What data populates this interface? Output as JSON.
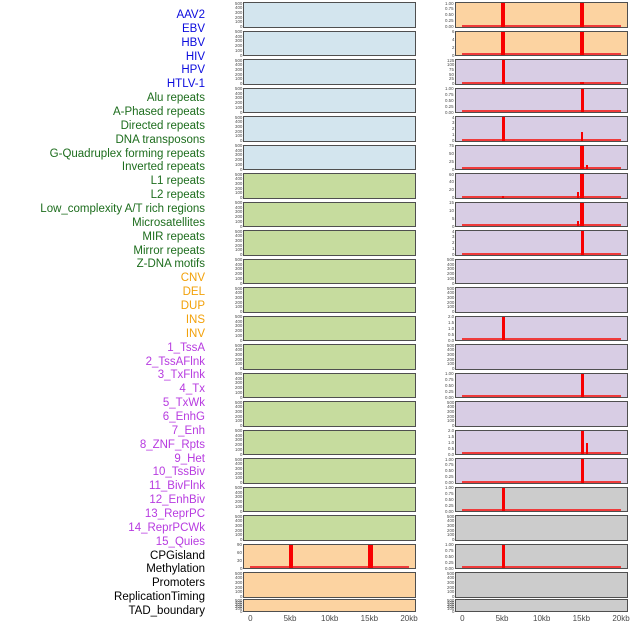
{
  "colors": {
    "label": {
      "virus": "#0b0bdd",
      "repeat": "#1d6d1d",
      "sv": "#f2a10a",
      "chromatin": "#b73be0",
      "annotation": "#000000"
    },
    "panel_fill": {
      "virus": "#d3e5ee",
      "repeat": "#c6dc9e",
      "sv": "#fcd3a1",
      "chromatin": "#d8cde4",
      "annotation": "#cccccc"
    },
    "panel_border": "#4f4f4f",
    "signal": "#f80000",
    "signal_baseline": "#ef3b3b",
    "axis_text": "#4a4a4a"
  },
  "chart_data": {
    "type": "area",
    "title": "",
    "xlabel": "",
    "ylabel": "",
    "x_range_kb": [
      0,
      20
    ],
    "xticks": [
      "0",
      "5kb",
      "10kb",
      "15kb",
      "20kb"
    ],
    "legend": "none",
    "grid": false,
    "layout": "two columns of 22 stacked signal panels, 44 row labels at left",
    "rows": [
      {
        "label": "AAV2",
        "group": "virus",
        "column": 1,
        "ylim": [
          0,
          500
        ],
        "yticks": [
          "500",
          "400",
          "300",
          "200",
          "100",
          "0"
        ],
        "baseline": false,
        "spikes": []
      },
      {
        "label": "EBV",
        "group": "virus",
        "column": 1,
        "ylim": [
          0,
          500
        ],
        "yticks": [
          "500",
          "400",
          "300",
          "200",
          "100",
          "0"
        ],
        "baseline": false,
        "spikes": []
      },
      {
        "label": "HBV",
        "group": "virus",
        "column": 1,
        "ylim": [
          0,
          500
        ],
        "yticks": [
          "500",
          "400",
          "300",
          "200",
          "100",
          "0"
        ],
        "baseline": false,
        "spikes": []
      },
      {
        "label": "HIV",
        "group": "virus",
        "column": 1,
        "ylim": [
          0,
          500
        ],
        "yticks": [
          "500",
          "400",
          "300",
          "200",
          "100",
          "0"
        ],
        "baseline": false,
        "spikes": []
      },
      {
        "label": "HPV",
        "group": "virus",
        "column": 1,
        "ylim": [
          0,
          500
        ],
        "yticks": [
          "500",
          "400",
          "300",
          "200",
          "100",
          "0"
        ],
        "baseline": false,
        "spikes": []
      },
      {
        "label": "HTLV-1",
        "group": "virus",
        "column": 1,
        "ylim": [
          0,
          500
        ],
        "yticks": [
          "500",
          "400",
          "300",
          "200",
          "100",
          "0"
        ],
        "baseline": false,
        "spikes": []
      },
      {
        "label": "Alu repeats",
        "group": "repeat",
        "column": 1,
        "ylim": [
          0,
          500
        ],
        "yticks": [
          "500",
          "400",
          "300",
          "200",
          "100",
          "0"
        ],
        "baseline": false,
        "spikes": []
      },
      {
        "label": "A-Phased repeats",
        "group": "repeat",
        "column": 1,
        "ylim": [
          0,
          500
        ],
        "yticks": [
          "500",
          "400",
          "300",
          "200",
          "100",
          "0"
        ],
        "baseline": false,
        "spikes": []
      },
      {
        "label": "Directed repeats",
        "group": "repeat",
        "column": 1,
        "ylim": [
          0,
          500
        ],
        "yticks": [
          "500",
          "400",
          "300",
          "200",
          "100",
          "0"
        ],
        "baseline": false,
        "spikes": []
      },
      {
        "label": "DNA transposons",
        "group": "repeat",
        "column": 1,
        "ylim": [
          0,
          500
        ],
        "yticks": [
          "500",
          "400",
          "300",
          "200",
          "100",
          "0"
        ],
        "baseline": false,
        "spikes": []
      },
      {
        "label": "G-Quadruplex forming repeats",
        "group": "repeat",
        "column": 1,
        "ylim": [
          0,
          500
        ],
        "yticks": [
          "500",
          "400",
          "300",
          "200",
          "100",
          "0"
        ],
        "baseline": false,
        "spikes": []
      },
      {
        "label": "Inverted repeats",
        "group": "repeat",
        "column": 1,
        "ylim": [
          0,
          500
        ],
        "yticks": [
          "500",
          "400",
          "300",
          "200",
          "100",
          "0"
        ],
        "baseline": false,
        "spikes": []
      },
      {
        "label": "L1 repeats",
        "group": "repeat",
        "column": 1,
        "ylim": [
          0,
          500
        ],
        "yticks": [
          "500",
          "400",
          "300",
          "200",
          "100",
          "0"
        ],
        "baseline": false,
        "spikes": []
      },
      {
        "label": "L2 repeats",
        "group": "repeat",
        "column": 1,
        "ylim": [
          0,
          500
        ],
        "yticks": [
          "500",
          "400",
          "300",
          "200",
          "100",
          "0"
        ],
        "baseline": false,
        "spikes": []
      },
      {
        "label": "Low_complexity A/T rich regions",
        "group": "repeat",
        "column": 1,
        "ylim": [
          0,
          500
        ],
        "yticks": [
          "500",
          "400",
          "300",
          "200",
          "100",
          "0"
        ],
        "baseline": false,
        "spikes": []
      },
      {
        "label": "Microsatellites",
        "group": "repeat",
        "column": 1,
        "ylim": [
          0,
          500
        ],
        "yticks": [
          "500",
          "400",
          "300",
          "200",
          "100",
          "0"
        ],
        "baseline": false,
        "spikes": []
      },
      {
        "label": "MIR repeats",
        "group": "repeat",
        "column": 1,
        "ylim": [
          0,
          500
        ],
        "yticks": [
          "500",
          "400",
          "300",
          "200",
          "100",
          "0"
        ],
        "baseline": false,
        "spikes": []
      },
      {
        "label": "Mirror repeats",
        "group": "repeat",
        "column": 1,
        "ylim": [
          0,
          500
        ],
        "yticks": [
          "500",
          "400",
          "300",
          "200",
          "100",
          "0"
        ],
        "baseline": false,
        "spikes": []
      },
      {
        "label": "Z-DNA motifs",
        "group": "repeat",
        "column": 1,
        "ylim": [
          0,
          500
        ],
        "yticks": [
          "500",
          "400",
          "300",
          "200",
          "100",
          "0"
        ],
        "baseline": false,
        "spikes": []
      },
      {
        "label": "CNV",
        "group": "sv",
        "column": 1,
        "ylim": [
          0,
          90
        ],
        "yticks": [
          "90",
          "60",
          "30",
          "0"
        ],
        "baseline": true,
        "spikes": [
          {
            "x_kb": 5,
            "h": 1,
            "w": 4
          },
          {
            "x_kb": 15,
            "h": 1,
            "w": 5
          }
        ]
      },
      {
        "label": "DEL",
        "group": "sv",
        "column": 1,
        "ylim": [
          0,
          500
        ],
        "yticks": [
          "500",
          "400",
          "300",
          "200",
          "100",
          "0"
        ],
        "baseline": false,
        "spikes": []
      },
      {
        "label": "DUP",
        "group": "sv",
        "column": 1,
        "ylim": [
          0,
          500
        ],
        "yticks": [
          "500",
          "400",
          "300",
          "200",
          "100",
          "0"
        ],
        "baseline": false,
        "spikes": []
      },
      {
        "label": "INS",
        "group": "sv",
        "column": 2,
        "ylim": [
          0,
          1
        ],
        "yticks": [
          "1.00",
          "0.75",
          "0.50",
          "0.25",
          "0.00"
        ],
        "baseline": true,
        "spikes": [
          {
            "x_kb": 5,
            "h": 1,
            "w": 4
          },
          {
            "x_kb": 15,
            "h": 1,
            "w": 4
          }
        ]
      },
      {
        "label": "INV",
        "group": "sv",
        "column": 2,
        "ylim": [
          0,
          6
        ],
        "yticks": [
          "6",
          "4",
          "2",
          "0"
        ],
        "baseline": true,
        "spikes": [
          {
            "x_kb": 5,
            "h": 1,
            "w": 4
          },
          {
            "x_kb": 15,
            "h": 1,
            "w": 4
          }
        ]
      },
      {
        "label": "1_TssA",
        "group": "chromatin",
        "column": 2,
        "ylim": [
          0,
          125
        ],
        "yticks": [
          "125",
          "100",
          "75",
          "50",
          "25",
          "0"
        ],
        "baseline": true,
        "spikes": [
          {
            "x_kb": 5,
            "h": 1,
            "w": 3
          },
          {
            "x_kb": 15,
            "h": 0.07,
            "w": 4
          }
        ]
      },
      {
        "label": "2_TssAFlnk",
        "group": "chromatin",
        "column": 2,
        "ylim": [
          0,
          1
        ],
        "yticks": [
          "1.00",
          "0.75",
          "0.50",
          "0.25",
          "0.00"
        ],
        "baseline": true,
        "spikes": [
          {
            "x_kb": 15,
            "h": 1,
            "w": 3
          }
        ]
      },
      {
        "label": "3_TxFlnk",
        "group": "chromatin",
        "column": 2,
        "ylim": [
          0,
          4
        ],
        "yticks": [
          "4",
          "3",
          "2",
          "1",
          "0"
        ],
        "baseline": true,
        "spikes": [
          {
            "x_kb": 5,
            "h": 1,
            "w": 3
          },
          {
            "x_kb": 15,
            "h": 0.35,
            "w": 2
          }
        ]
      },
      {
        "label": "4_Tx",
        "group": "chromatin",
        "column": 2,
        "ylim": [
          0,
          75
        ],
        "yticks": [
          "75",
          "50",
          "25",
          "0"
        ],
        "baseline": true,
        "spikes": [
          {
            "x_kb": 15,
            "h": 1,
            "w": 4
          },
          {
            "x_kb": 15.6,
            "h": 0.15,
            "w": 2
          }
        ]
      },
      {
        "label": "5_TxWk",
        "group": "chromatin",
        "column": 2,
        "ylim": [
          0,
          60
        ],
        "yticks": [
          "60",
          "40",
          "20",
          "0"
        ],
        "baseline": true,
        "spikes": [
          {
            "x_kb": 5,
            "h": 0.07,
            "w": 2
          },
          {
            "x_kb": 14.5,
            "h": 0.25,
            "w": 2
          },
          {
            "x_kb": 15,
            "h": 1,
            "w": 4
          }
        ]
      },
      {
        "label": "6_EnhG",
        "group": "chromatin",
        "column": 2,
        "ylim": [
          0,
          15
        ],
        "yticks": [
          "15",
          "10",
          "5",
          "0"
        ],
        "baseline": true,
        "spikes": [
          {
            "x_kb": 14.5,
            "h": 0.2,
            "w": 2
          },
          {
            "x_kb": 15,
            "h": 1,
            "w": 4
          }
        ]
      },
      {
        "label": "7_Enh",
        "group": "chromatin",
        "column": 2,
        "ylim": [
          0,
          4
        ],
        "yticks": [
          "4",
          "3",
          "2",
          "1",
          "0"
        ],
        "baseline": true,
        "spikes": [
          {
            "x_kb": 15,
            "h": 1,
            "w": 3
          }
        ]
      },
      {
        "label": "8_ZNF_Rpts",
        "group": "chromatin",
        "column": 2,
        "ylim": [
          0,
          500
        ],
        "yticks": [
          "500",
          "400",
          "300",
          "200",
          "100",
          "0"
        ],
        "baseline": false,
        "spikes": []
      },
      {
        "label": "9_Het",
        "group": "chromatin",
        "column": 2,
        "ylim": [
          0,
          500
        ],
        "yticks": [
          "500",
          "400",
          "300",
          "200",
          "100",
          "0"
        ],
        "baseline": false,
        "spikes": []
      },
      {
        "label": "10_TssBiv",
        "group": "chromatin",
        "column": 2,
        "ylim": [
          0,
          2
        ],
        "yticks": [
          "2.0",
          "1.5",
          "1.0",
          "0.5",
          "0.0"
        ],
        "baseline": true,
        "spikes": [
          {
            "x_kb": 5,
            "h": 1,
            "w": 3
          }
        ]
      },
      {
        "label": "11_BivFlnk",
        "group": "chromatin",
        "column": 2,
        "ylim": [
          0,
          500
        ],
        "yticks": [
          "500",
          "400",
          "300",
          "200",
          "100",
          "0"
        ],
        "baseline": false,
        "spikes": []
      },
      {
        "label": "12_EnhBiv",
        "group": "chromatin",
        "column": 2,
        "ylim": [
          0,
          1
        ],
        "yticks": [
          "1.00",
          "0.75",
          "0.50",
          "0.25",
          "0.00"
        ],
        "baseline": true,
        "spikes": [
          {
            "x_kb": 15,
            "h": 1,
            "w": 3
          }
        ]
      },
      {
        "label": "13_ReprPC",
        "group": "chromatin",
        "column": 2,
        "ylim": [
          0,
          500
        ],
        "yticks": [
          "500",
          "400",
          "300",
          "200",
          "100",
          "0"
        ],
        "baseline": false,
        "spikes": []
      },
      {
        "label": "14_ReprPCWk",
        "group": "chromatin",
        "column": 2,
        "ylim": [
          0,
          2
        ],
        "yticks": [
          "2.0",
          "1.5",
          "1.0",
          "0.5",
          "0.0"
        ],
        "baseline": true,
        "spikes": [
          {
            "x_kb": 15,
            "h": 1,
            "w": 3
          },
          {
            "x_kb": 15.6,
            "h": 0.45,
            "w": 2
          }
        ]
      },
      {
        "label": "15_Quies",
        "group": "chromatin",
        "column": 2,
        "ylim": [
          0,
          1
        ],
        "yticks": [
          "1.00",
          "0.75",
          "0.50",
          "0.25",
          "0.00"
        ],
        "baseline": true,
        "spikes": [
          {
            "x_kb": 15,
            "h": 1,
            "w": 3
          }
        ]
      },
      {
        "label": "CPGisland",
        "group": "annotation",
        "column": 2,
        "ylim": [
          0,
          1
        ],
        "yticks": [
          "1.00",
          "0.75",
          "0.50",
          "0.25",
          "0.00"
        ],
        "baseline": true,
        "spikes": [
          {
            "x_kb": 5,
            "h": 1,
            "w": 3
          }
        ]
      },
      {
        "label": "Methylation",
        "group": "annotation",
        "column": 2,
        "ylim": [
          0,
          500
        ],
        "yticks": [
          "500",
          "400",
          "300",
          "200",
          "100",
          "0"
        ],
        "baseline": false,
        "spikes": []
      },
      {
        "label": "Promoters",
        "group": "annotation",
        "column": 2,
        "ylim": [
          0,
          1
        ],
        "yticks": [
          "1.00",
          "0.75",
          "0.50",
          "0.25",
          "0.00"
        ],
        "baseline": true,
        "spikes": [
          {
            "x_kb": 5,
            "h": 1,
            "w": 3
          }
        ]
      },
      {
        "label": "ReplicationTiming",
        "group": "annotation",
        "column": 2,
        "ylim": [
          0,
          500
        ],
        "yticks": [
          "500",
          "400",
          "300",
          "200",
          "100",
          "0"
        ],
        "baseline": false,
        "spikes": []
      },
      {
        "label": "TAD_boundary",
        "group": "annotation",
        "column": 2,
        "ylim": [
          0,
          500
        ],
        "yticks": [
          "500",
          "400",
          "300",
          "200",
          "100",
          "0"
        ],
        "baseline": false,
        "spikes": []
      }
    ]
  }
}
